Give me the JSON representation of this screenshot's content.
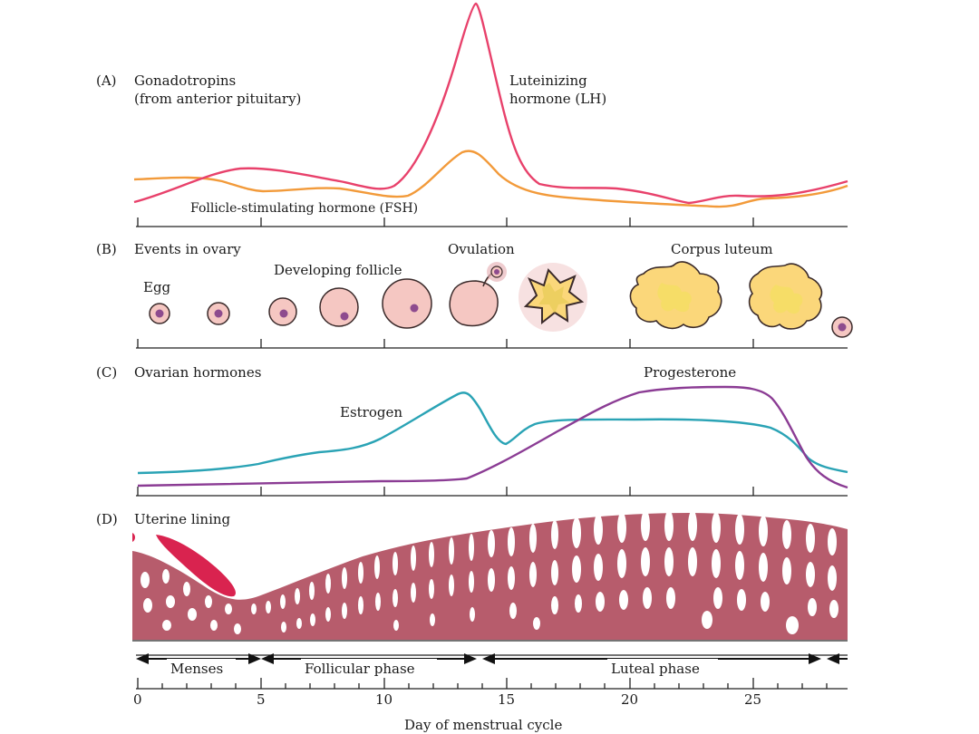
{
  "panels": {
    "a": {
      "label": "(A)",
      "title_line1": "Gonadotropins",
      "title_line2": "(from anterior pituitary)"
    },
    "b": {
      "label": "(B)",
      "title": "Events in ovary"
    },
    "c": {
      "label": "(C)",
      "title": "Ovarian hormones"
    },
    "d": {
      "label": "(D)",
      "title": "Uterine lining"
    }
  },
  "hormones": {
    "lh_line1": "Luteinizing",
    "lh_line2": "hormone (LH)",
    "fsh": "Follicle-stimulating hormone (FSH)",
    "estrogen": "Estrogen",
    "progesterone": "Progesterone"
  },
  "ovary_events": {
    "egg": "Egg",
    "developing_follicle": "Developing follicle",
    "ovulation": "Ovulation",
    "corpus_luteum": "Corpus luteum"
  },
  "phases": {
    "menses": "Menses",
    "follicular": "Follicular phase",
    "luteal": "Luteal phase"
  },
  "axis": {
    "title": "Day of menstrual cycle",
    "ticks": [
      "0",
      "5",
      "10",
      "15",
      "20",
      "25"
    ]
  },
  "colors": {
    "lh": "#e8416b",
    "fsh": "#f29a3a",
    "estrogen": "#2aa3b5",
    "progesterone": "#8b3c94",
    "lining": "#b75c6c",
    "menses": "#d9234f",
    "follicle": "#f5c7c2",
    "egg": "#8e4b8e",
    "corpus_luteum": "#fbd77a"
  }
}
